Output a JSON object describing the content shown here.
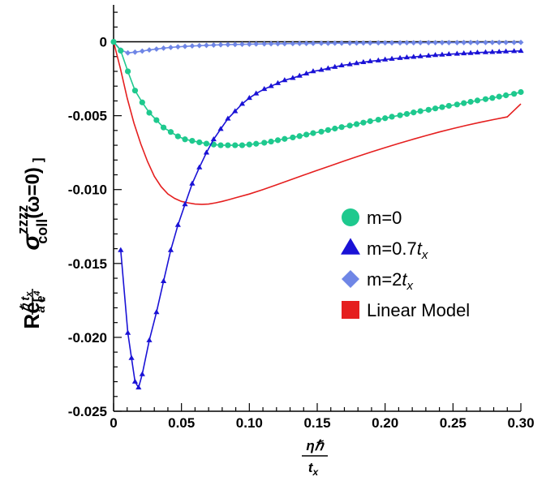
{
  "chart_data": {
    "type": "line",
    "title": "",
    "xlabel": {
      "numerator": "ηℏ",
      "denominator": "t",
      "denominator_sub": "x"
    },
    "ylabel": {
      "re": "Re",
      "bracket_open": "[",
      "frac_num": "ℏ t",
      "frac_num_sub": "x",
      "frac_den": "a e",
      "frac_den_sup": "4",
      "sigma": "σ",
      "sup": "zzzz",
      "sub": "coll",
      "arg": "(ω=0)",
      "bracket_close": "]"
    },
    "xlim": [
      0,
      0.3
    ],
    "ylim": [
      -0.025,
      0.0025
    ],
    "xticks": [
      0,
      0.05,
      0.1,
      0.15,
      0.2,
      0.25,
      0.3
    ],
    "xtick_labels": [
      "0",
      "0.05",
      "0.10",
      "0.15",
      "0.20",
      "0.25",
      "0.30"
    ],
    "yticks": [
      0,
      -0.005,
      -0.01,
      -0.015,
      -0.02,
      -0.025
    ],
    "ytick_labels": [
      "0",
      "-0.005",
      "-0.010",
      "-0.015",
      "-0.020",
      "-0.025"
    ],
    "grid": false,
    "legend_position": "right",
    "series": [
      {
        "name": "m=0",
        "legend": {
          "text": "m=0",
          "italic": "",
          "sub": ""
        },
        "marker": "circle",
        "color": "#1ec98e",
        "line_color": "#1ec98e",
        "x": [
          0,
          0.00526,
          0.0105,
          0.0158,
          0.0211,
          0.0263,
          0.0316,
          0.0368,
          0.0421,
          0.0474,
          0.0526,
          0.0579,
          0.0632,
          0.0684,
          0.0737,
          0.0789,
          0.0842,
          0.0895,
          0.0947,
          0.1,
          0.105,
          0.111,
          0.116,
          0.121,
          0.126,
          0.132,
          0.137,
          0.142,
          0.147,
          0.153,
          0.158,
          0.163,
          0.168,
          0.174,
          0.179,
          0.184,
          0.189,
          0.195,
          0.2,
          0.205,
          0.211,
          0.216,
          0.221,
          0.226,
          0.232,
          0.237,
          0.242,
          0.247,
          0.253,
          0.258,
          0.263,
          0.268,
          0.274,
          0.279,
          0.284,
          0.289,
          0.295,
          0.3
        ],
        "y": [
          0,
          -0.0006,
          -0.002,
          -0.0033,
          -0.0041,
          -0.0048,
          -0.0053,
          -0.0058,
          -0.0061,
          -0.0064,
          -0.0066,
          -0.0067,
          -0.0068,
          -0.00689,
          -0.00695,
          -0.007,
          -0.007,
          -0.007,
          -0.007,
          -0.00695,
          -0.0069,
          -0.00683,
          -0.00675,
          -0.00666,
          -0.00657,
          -0.00647,
          -0.00638,
          -0.00628,
          -0.00618,
          -0.00608,
          -0.00597,
          -0.00587,
          -0.00577,
          -0.00567,
          -0.00557,
          -0.00547,
          -0.00537,
          -0.00527,
          -0.00517,
          -0.00507,
          -0.00497,
          -0.00488,
          -0.00478,
          -0.00469,
          -0.0046,
          -0.00451,
          -0.00442,
          -0.00433,
          -0.00424,
          -0.00415,
          -0.00406,
          -0.00397,
          -0.00388,
          -0.0038,
          -0.00371,
          -0.00362,
          -0.00352,
          -0.0034
        ]
      },
      {
        "name": "m=0.7t_x",
        "legend": {
          "text": "m=0.7",
          "italic": "t",
          "sub": "x"
        },
        "marker": "triangle",
        "color": "#1a12d6",
        "line_color": "#1a12d6",
        "x": [
          0.00526,
          0.0105,
          0.0132,
          0.0158,
          0.0184,
          0.0211,
          0.0263,
          0.0316,
          0.0368,
          0.0421,
          0.0474,
          0.0526,
          0.0579,
          0.0632,
          0.0684,
          0.0737,
          0.0789,
          0.0842,
          0.0895,
          0.0947,
          0.1,
          0.105,
          0.111,
          0.116,
          0.121,
          0.126,
          0.132,
          0.137,
          0.142,
          0.147,
          0.153,
          0.158,
          0.163,
          0.168,
          0.174,
          0.179,
          0.184,
          0.189,
          0.195,
          0.2,
          0.205,
          0.211,
          0.216,
          0.221,
          0.226,
          0.232,
          0.237,
          0.242,
          0.247,
          0.253,
          0.258,
          0.263,
          0.268,
          0.274,
          0.279,
          0.284,
          0.289,
          0.295,
          0.3
        ],
        "y": [
          -0.0141,
          -0.0197,
          -0.0214,
          -0.023,
          -0.0234,
          -0.0225,
          -0.0202,
          -0.0183,
          -0.0162,
          -0.0141,
          -0.0124,
          -0.011,
          -0.0096,
          -0.0085,
          -0.0075,
          -0.0066,
          -0.0059,
          -0.0052,
          -0.0047,
          -0.0042,
          -0.0038,
          -0.0035,
          -0.0032,
          -0.003,
          -0.0028,
          -0.0026,
          -0.00245,
          -0.0023,
          -0.00215,
          -0.002,
          -0.0019,
          -0.0018,
          -0.0017,
          -0.0016,
          -0.00152,
          -0.00145,
          -0.00138,
          -0.00132,
          -0.00126,
          -0.0012,
          -0.00115,
          -0.0011,
          -0.00106,
          -0.00102,
          -0.00098,
          -0.00094,
          -0.0009,
          -0.00087,
          -0.00084,
          -0.00081,
          -0.00078,
          -0.00076,
          -0.00073,
          -0.00071,
          -0.00069,
          -0.00067,
          -0.00065,
          -0.00063,
          -0.00062
        ]
      },
      {
        "name": "m=2t_x",
        "legend": {
          "text": "m=2",
          "italic": "t",
          "sub": "x"
        },
        "marker": "diamond",
        "color": "#6f86e6",
        "line_color": "#6f86e6",
        "x": [
          0,
          0.00526,
          0.0105,
          0.0158,
          0.0211,
          0.0263,
          0.0316,
          0.0368,
          0.0421,
          0.0474,
          0.0526,
          0.0579,
          0.0632,
          0.0684,
          0.0737,
          0.0789,
          0.0842,
          0.0895,
          0.0947,
          0.1,
          0.105,
          0.111,
          0.116,
          0.121,
          0.126,
          0.132,
          0.137,
          0.142,
          0.147,
          0.153,
          0.158,
          0.163,
          0.168,
          0.174,
          0.179,
          0.184,
          0.189,
          0.195,
          0.2,
          0.205,
          0.211,
          0.216,
          0.221,
          0.226,
          0.232,
          0.237,
          0.242,
          0.247,
          0.253,
          0.258,
          0.263,
          0.268,
          0.274,
          0.279,
          0.284,
          0.289,
          0.295,
          0.3
        ],
        "y": [
          0,
          -0.00055,
          -0.00075,
          -0.0007,
          -0.00063,
          -0.00055,
          -0.00049,
          -0.00043,
          -0.00038,
          -0.00034,
          -0.00031,
          -0.00028,
          -0.00026,
          -0.00024,
          -0.00022,
          -0.0002,
          -0.00019,
          -0.00018,
          -0.00017,
          -0.00016,
          -0.00015,
          -0.00014,
          -0.000135,
          -0.00013,
          -0.000125,
          -0.00012,
          -0.000115,
          -0.00011,
          -0.000105,
          -0.0001,
          -0.0001,
          -9.5e-05,
          -9e-05,
          -9e-05,
          -8.5e-05,
          -8e-05,
          -8e-05,
          -7.5e-05,
          -7.5e-05,
          -7e-05,
          -7e-05,
          -6.5e-05,
          -6.5e-05,
          -6e-05,
          -6e-05,
          -6e-05,
          -5.5e-05,
          -5.5e-05,
          -5.5e-05,
          -5e-05,
          -5e-05,
          -5e-05,
          -5e-05,
          -4.5e-05,
          -4.5e-05,
          -4.5e-05,
          -4.5e-05,
          -4e-05
        ]
      },
      {
        "name": "Linear Model",
        "legend": {
          "text": "Linear Model",
          "italic": "",
          "sub": ""
        },
        "marker": "none",
        "legend_marker": "square",
        "color": "#e51f1f",
        "line_color": "#e51f1f",
        "x": [
          0,
          0.005,
          0.01,
          0.015,
          0.02,
          0.025,
          0.03,
          0.035,
          0.04,
          0.045,
          0.05,
          0.055,
          0.06,
          0.065,
          0.07,
          0.075,
          0.08,
          0.085,
          0.09,
          0.1,
          0.11,
          0.12,
          0.13,
          0.14,
          0.15,
          0.16,
          0.17,
          0.18,
          0.19,
          0.2,
          0.21,
          0.22,
          0.23,
          0.24,
          0.25,
          0.26,
          0.27,
          0.28,
          0.29,
          0.3
        ],
        "y": [
          0,
          -0.0018,
          -0.0038,
          -0.0055,
          -0.0069,
          -0.0081,
          -0.0091,
          -0.0098,
          -0.0103,
          -0.0106,
          -0.0108,
          -0.0109,
          -0.01098,
          -0.011,
          -0.01098,
          -0.0109,
          -0.0108,
          -0.01068,
          -0.01055,
          -0.0103,
          -0.01,
          -0.00968,
          -0.00935,
          -0.00902,
          -0.0087,
          -0.00838,
          -0.00806,
          -0.00775,
          -0.00745,
          -0.00716,
          -0.00688,
          -0.00661,
          -0.00635,
          -0.0061,
          -0.00587,
          -0.00565,
          -0.00545,
          -0.00526,
          -0.00508,
          -0.0042
        ]
      }
    ]
  }
}
